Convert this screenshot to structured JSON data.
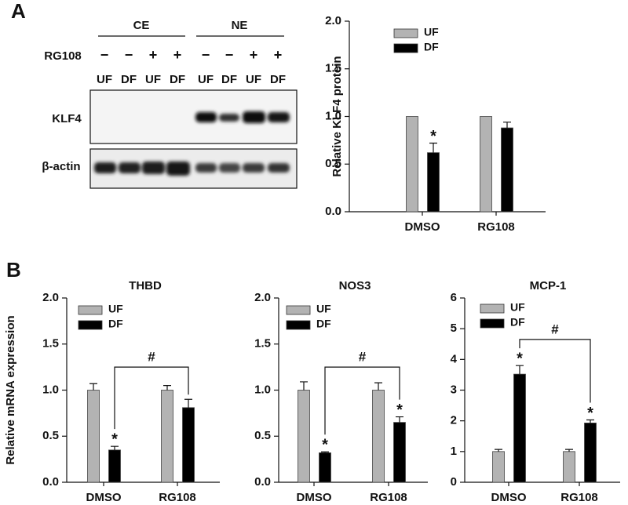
{
  "panel_labels": [
    "A",
    "B"
  ],
  "blot": {
    "groups": [
      "CE",
      "NE"
    ],
    "treatment_label": "RG108",
    "treatment": [
      "−",
      "−",
      "+",
      "+",
      "−",
      "−",
      "+",
      "+"
    ],
    "lanes": [
      "UF",
      "DF",
      "UF",
      "DF",
      "UF",
      "DF",
      "UF",
      "DF"
    ],
    "rows": [
      "KLF4",
      "β-actin"
    ]
  },
  "chart_data": [
    {
      "type": "bar",
      "y_label": "Relative KLF4 protein",
      "categories": [
        "DMSO",
        "RG108"
      ],
      "ylim": [
        0,
        2
      ],
      "yticks": [
        {
          "value": 0,
          "label": "0.0"
        },
        {
          "value": 0.5,
          "label": "0.5"
        },
        {
          "value": 1,
          "label": "1.0"
        },
        {
          "value": 1.5,
          "label": "1.5"
        },
        {
          "value": 2,
          "label": "2.0"
        }
      ],
      "series": [
        {
          "name": "UF",
          "color": "#b3b3b3",
          "values": [
            1,
            1
          ]
        },
        {
          "name": "DF",
          "color": "#000000",
          "values": [
            0.62,
            0.88
          ],
          "errors": [
            0.1,
            0.06
          ],
          "marks": [
            "*",
            null
          ]
        }
      ]
    },
    {
      "type": "bar",
      "title": "THBD",
      "y_label": "Relative mRNA expression",
      "categories": [
        "DMSO",
        "RG108"
      ],
      "ylim": [
        0,
        2
      ],
      "yticks": [
        {
          "value": 0,
          "label": "0.0"
        },
        {
          "value": 0.5,
          "label": "0.5"
        },
        {
          "value": 1,
          "label": "1.0"
        },
        {
          "value": 1.5,
          "label": "1.5"
        },
        {
          "value": 2,
          "label": "2.0"
        }
      ],
      "series": [
        {
          "name": "UF",
          "color": "#b3b3b3",
          "values": [
            1,
            1
          ],
          "errors": [
            0.07,
            0.05
          ]
        },
        {
          "name": "DF",
          "color": "#000000",
          "values": [
            0.35,
            0.81
          ],
          "errors": [
            0.04,
            0.09
          ],
          "marks": [
            "*",
            null
          ]
        }
      ],
      "bracket": {
        "label": "#",
        "y": 1.25
      }
    },
    {
      "type": "bar",
      "title": "NOS3",
      "categories": [
        "DMSO",
        "RG108"
      ],
      "ylim": [
        0,
        2
      ],
      "yticks": [
        {
          "value": 0,
          "label": "0.0"
        },
        {
          "value": 0.5,
          "label": "0.5"
        },
        {
          "value": 1,
          "label": "1.0"
        },
        {
          "value": 1.5,
          "label": "1.5"
        },
        {
          "value": 2,
          "label": "2.0"
        }
      ],
      "series": [
        {
          "name": "UF",
          "color": "#b3b3b3",
          "values": [
            1,
            1
          ],
          "errors": [
            0.09,
            0.08
          ]
        },
        {
          "name": "DF",
          "color": "#000000",
          "values": [
            0.32,
            0.65
          ],
          "errors": [
            0.01,
            0.06
          ],
          "marks": [
            "*",
            "*"
          ]
        }
      ],
      "bracket": {
        "label": "#",
        "y": 1.25
      }
    },
    {
      "type": "bar",
      "title": "MCP-1",
      "categories": [
        "DMSO",
        "RG108"
      ],
      "ylim": [
        0,
        6
      ],
      "yticks": [
        0,
        1,
        2,
        3,
        4,
        5,
        6
      ],
      "series": [
        {
          "name": "UF",
          "color": "#b3b3b3",
          "values": [
            1,
            1
          ],
          "errors": [
            0.07,
            0.07
          ]
        },
        {
          "name": "DF",
          "color": "#000000",
          "values": [
            3.52,
            1.93
          ],
          "errors": [
            0.28,
            0.1
          ],
          "marks": [
            "*",
            "*"
          ]
        }
      ],
      "bracket": {
        "label": "#",
        "y": 4.65
      }
    }
  ]
}
